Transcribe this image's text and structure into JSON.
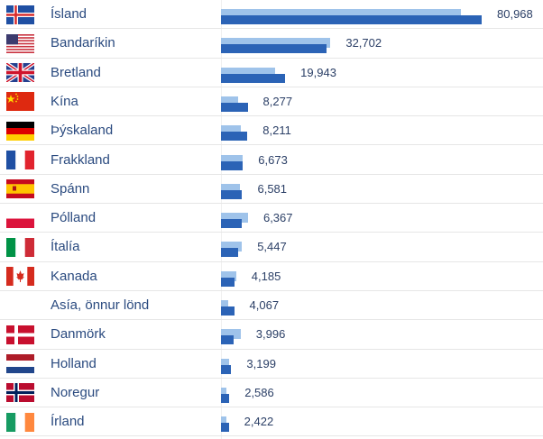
{
  "chart_data": {
    "type": "bar",
    "categories": [
      "Ísland",
      "Bandaríkin",
      "Bretland",
      "Kína",
      "Þýskaland",
      "Frakkland",
      "Spánn",
      "Pólland",
      "Ítalía",
      "Kanada",
      "Asía, önnur lönd",
      "Danmörk",
      "Holland",
      "Noregur",
      "Írland"
    ],
    "flags": [
      "iceland-flag",
      "usa-flag",
      "uk-flag",
      "china-flag",
      "germany-flag",
      "france-flag",
      "spain-flag",
      "poland-flag",
      "italy-flag",
      "canada-flag",
      "",
      "denmark-flag",
      "netherlands-flag",
      "norway-flag",
      "ireland-flag"
    ],
    "series": [
      {
        "values": [
          80968,
          32702,
          19943,
          8277,
          8211,
          6673,
          6581,
          6367,
          5447,
          4185,
          4067,
          3996,
          3199,
          2586,
          2422
        ]
      },
      {
        "values": [
          74500,
          34000,
          16900,
          5300,
          6100,
          6800,
          6000,
          8400,
          6500,
          4700,
          2200,
          6100,
          2400,
          1700,
          1800
        ]
      }
    ],
    "value_labels": [
      "80,968",
      "32,702",
      "19,943",
      "8,277",
      "8,211",
      "6,673",
      "6,581",
      "6,367",
      "5,447",
      "4,185",
      "4,067",
      "3,996",
      "3,199",
      "2,586",
      "2,422"
    ],
    "colors": {
      "dark": "#2b63b6",
      "light": "#9fc3ea",
      "label": "#2a4a7f"
    },
    "xlim": [
      0,
      80968
    ],
    "orientation": "horizontal"
  }
}
